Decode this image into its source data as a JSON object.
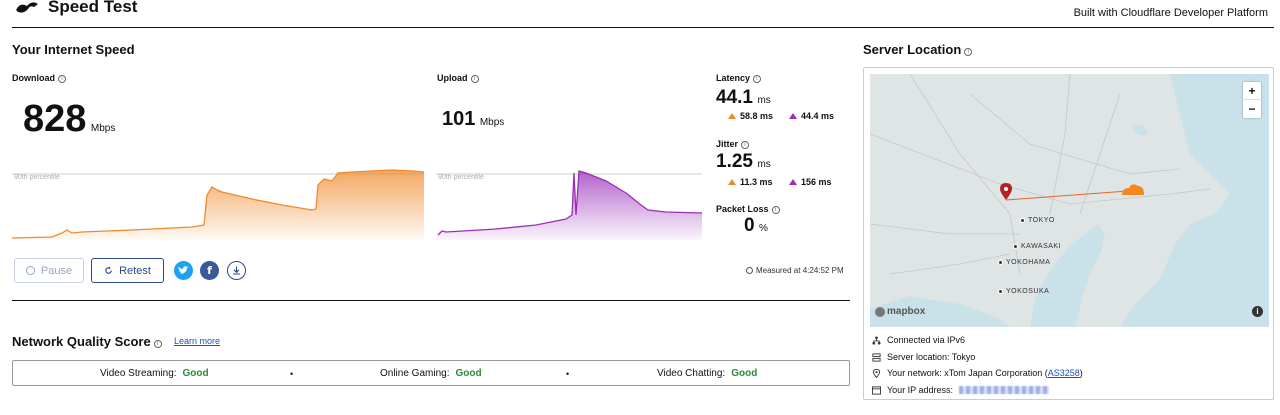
{
  "header": {
    "title": "Speed Test",
    "built_with": "Built with Cloudflare Developer Platform"
  },
  "speed": {
    "section_title": "Your Internet Speed",
    "download": {
      "label": "Download",
      "value": "828",
      "unit": "Mbps",
      "percentile_label": "90th percentile"
    },
    "upload": {
      "label": "Upload",
      "value": "101",
      "unit": "Mbps",
      "percentile_label": "90th percentile"
    },
    "latency": {
      "label": "Latency",
      "value": "44.1",
      "unit": "ms",
      "down_value": "58.8 ms",
      "up_value": "44.4 ms"
    },
    "jitter": {
      "label": "Jitter",
      "value": "1.25",
      "unit": "ms",
      "down_value": "11.3 ms",
      "up_value": "156 ms"
    },
    "packet_loss": {
      "label": "Packet Loss",
      "value": "0",
      "unit": "%"
    }
  },
  "actions": {
    "pause_label": "Pause",
    "retest_label": "Retest",
    "measured_at": "Measured at 4:24:52 PM"
  },
  "quality": {
    "section_title": "Network Quality Score",
    "learn_more": "Learn more",
    "items": [
      {
        "label": "Video Streaming:",
        "score": "Good"
      },
      {
        "label": "Online Gaming:",
        "score": "Good"
      },
      {
        "label": "Video Chatting:",
        "score": "Good"
      }
    ]
  },
  "server": {
    "section_title": "Server Location",
    "map_attribution": "mapbox",
    "cities": [
      "TOKYO",
      "KAWASAKI",
      "YOKOHAMA",
      "YOKOSUKA"
    ],
    "connected_via": "Connected via IPv6",
    "server_location": "Server location: Tokyo",
    "network_prefix": "Your network: xTom Japan Corporation (",
    "network_asn": "AS3258",
    "network_suffix": ")",
    "ip_label": "Your IP address:"
  },
  "colors": {
    "download": "#f08a2c",
    "upload": "#9b2fb8",
    "good": "#2a8a3a",
    "accent": "#2c4a8a"
  },
  "icons": {
    "logo": "cloudflare-bird-icon",
    "info": "info-circle-icon",
    "twitter": "twitter-icon",
    "facebook": "facebook-icon",
    "download": "download-icon"
  }
}
